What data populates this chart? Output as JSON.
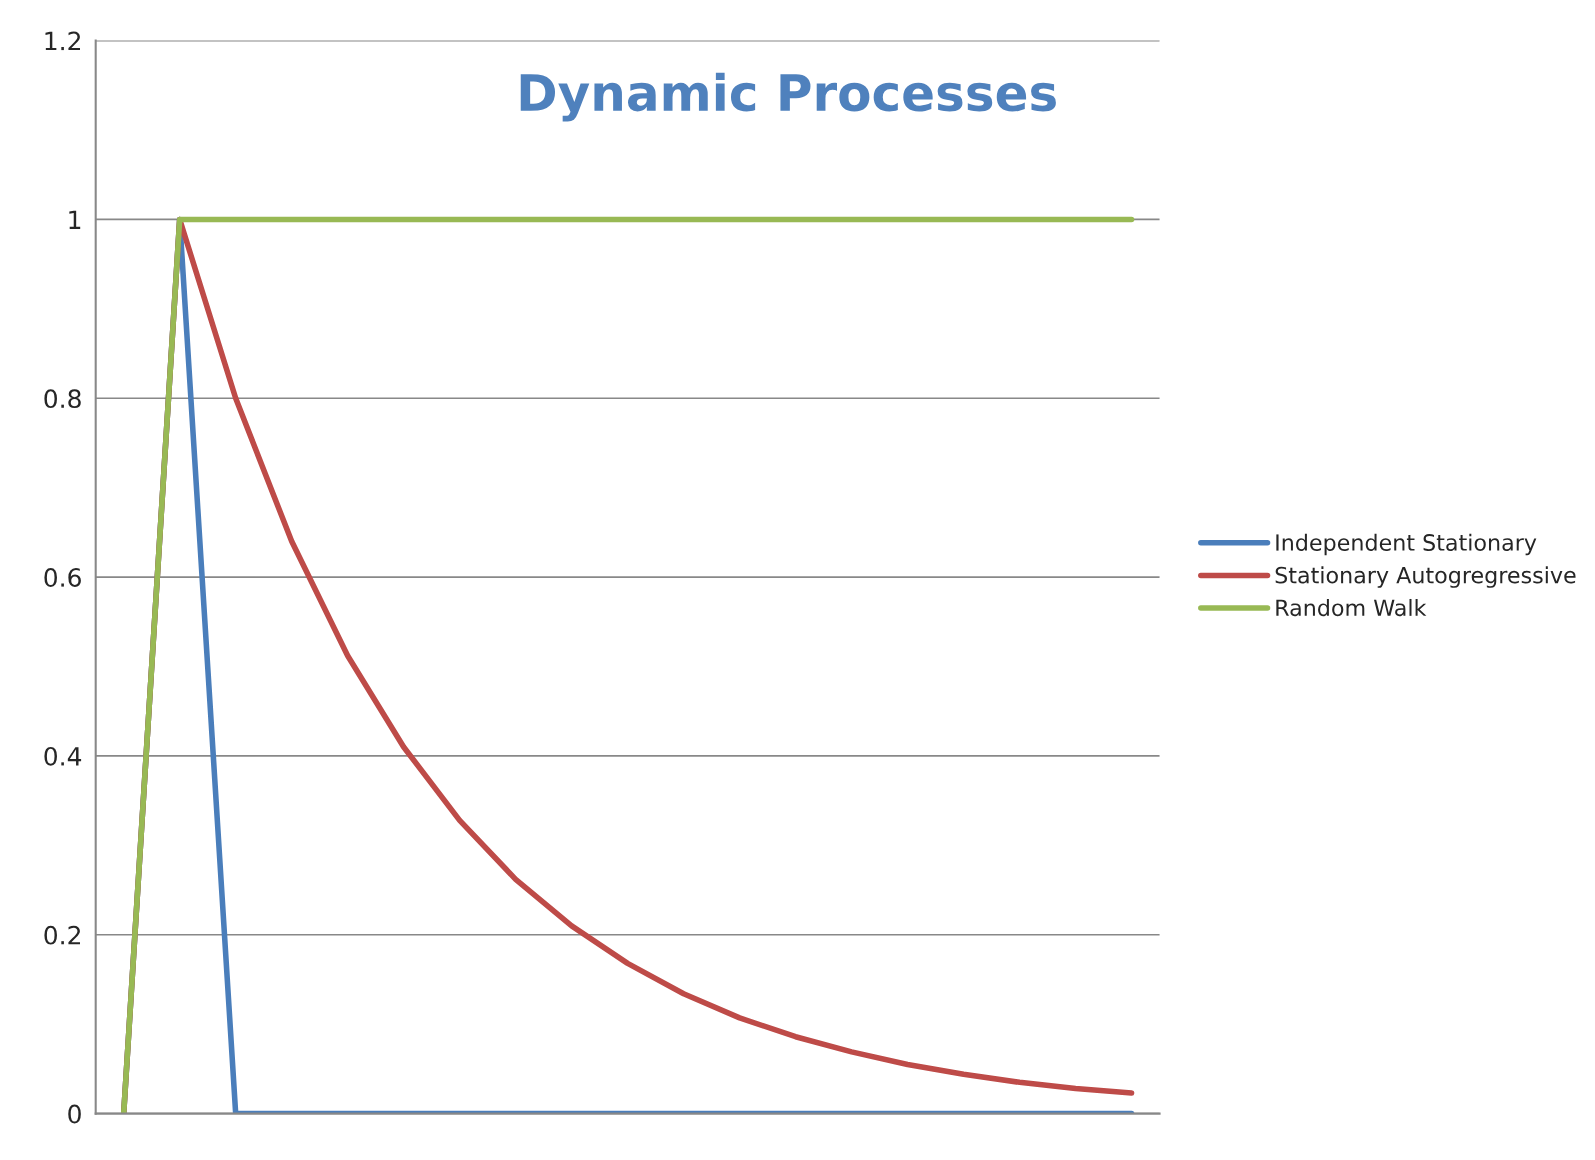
{
  "chart_data": {
    "type": "line",
    "title": "Dynamic Processes",
    "categories": [
      null,
      null,
      null,
      null,
      null,
      null,
      null,
      null,
      null,
      null,
      null,
      null,
      null,
      null,
      null,
      null,
      null,
      null,
      null
    ],
    "series": [
      {
        "name": "Independent Stationary",
        "color": "#4a7ebb",
        "values": [
          0,
          1,
          0,
          0,
          0,
          0,
          0,
          0,
          0,
          0,
          0,
          0,
          0,
          0,
          0,
          0,
          0,
          0,
          0
        ]
      },
      {
        "name": "Stationary Autogregressive",
        "color": "#be4b48",
        "values": [
          0,
          1,
          0.8,
          0.64,
          0.512,
          0.41,
          0.328,
          0.262,
          0.21,
          0.168,
          0.134,
          0.107,
          0.086,
          0.069,
          0.055,
          0.044,
          0.035,
          0.028,
          0.023
        ]
      },
      {
        "name": "Random Walk",
        "color": "#98b954",
        "values": [
          0,
          1,
          1,
          1,
          1,
          1,
          1,
          1,
          1,
          1,
          1,
          1,
          1,
          1,
          1,
          1,
          1,
          1,
          1
        ]
      }
    ],
    "ylim": [
      0,
      1.2
    ],
    "yticks": [
      0,
      0.2,
      0.4,
      0.6,
      0.8,
      1,
      1.2
    ],
    "grid": "y",
    "legend": "right",
    "tick_labels": "y",
    "marker": "none",
    "line_style": "solid"
  }
}
